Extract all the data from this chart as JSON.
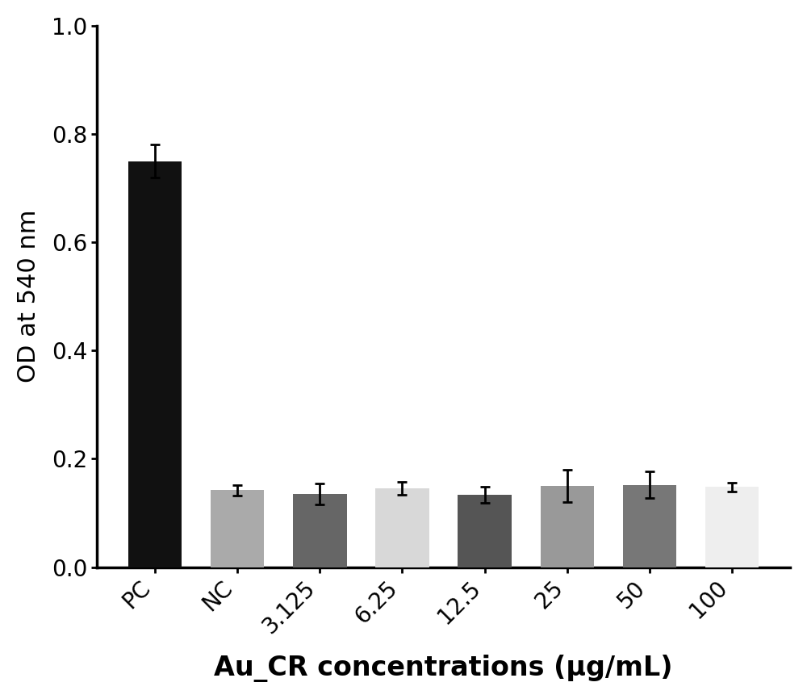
{
  "categories": [
    "PC",
    "NC",
    "3.125",
    "6.25",
    "12.5",
    "25",
    "50",
    "100"
  ],
  "values": [
    0.75,
    0.142,
    0.135,
    0.146,
    0.133,
    0.15,
    0.152,
    0.148
  ],
  "errors": [
    0.03,
    0.01,
    0.02,
    0.012,
    0.015,
    0.03,
    0.025,
    0.008
  ],
  "bar_colors": [
    "#111111",
    "#aaaaaa",
    "#666666",
    "#d8d8d8",
    "#555555",
    "#999999",
    "#777777",
    "#eeeeee"
  ],
  "ylabel": "OD at 540 nm",
  "xlabel": "Au_CR concentrations (μg/mL)",
  "ylim": [
    0.0,
    1.0
  ],
  "yticks": [
    0.0,
    0.2,
    0.4,
    0.6,
    0.8,
    1.0
  ],
  "ylabel_fontsize": 22,
  "xlabel_fontsize": 24,
  "tick_fontsize": 20,
  "bar_width": 0.65,
  "background_color": "#ffffff",
  "capsize": 4,
  "xlabel_fontweight": "bold",
  "spine_linewidth": 2.5
}
